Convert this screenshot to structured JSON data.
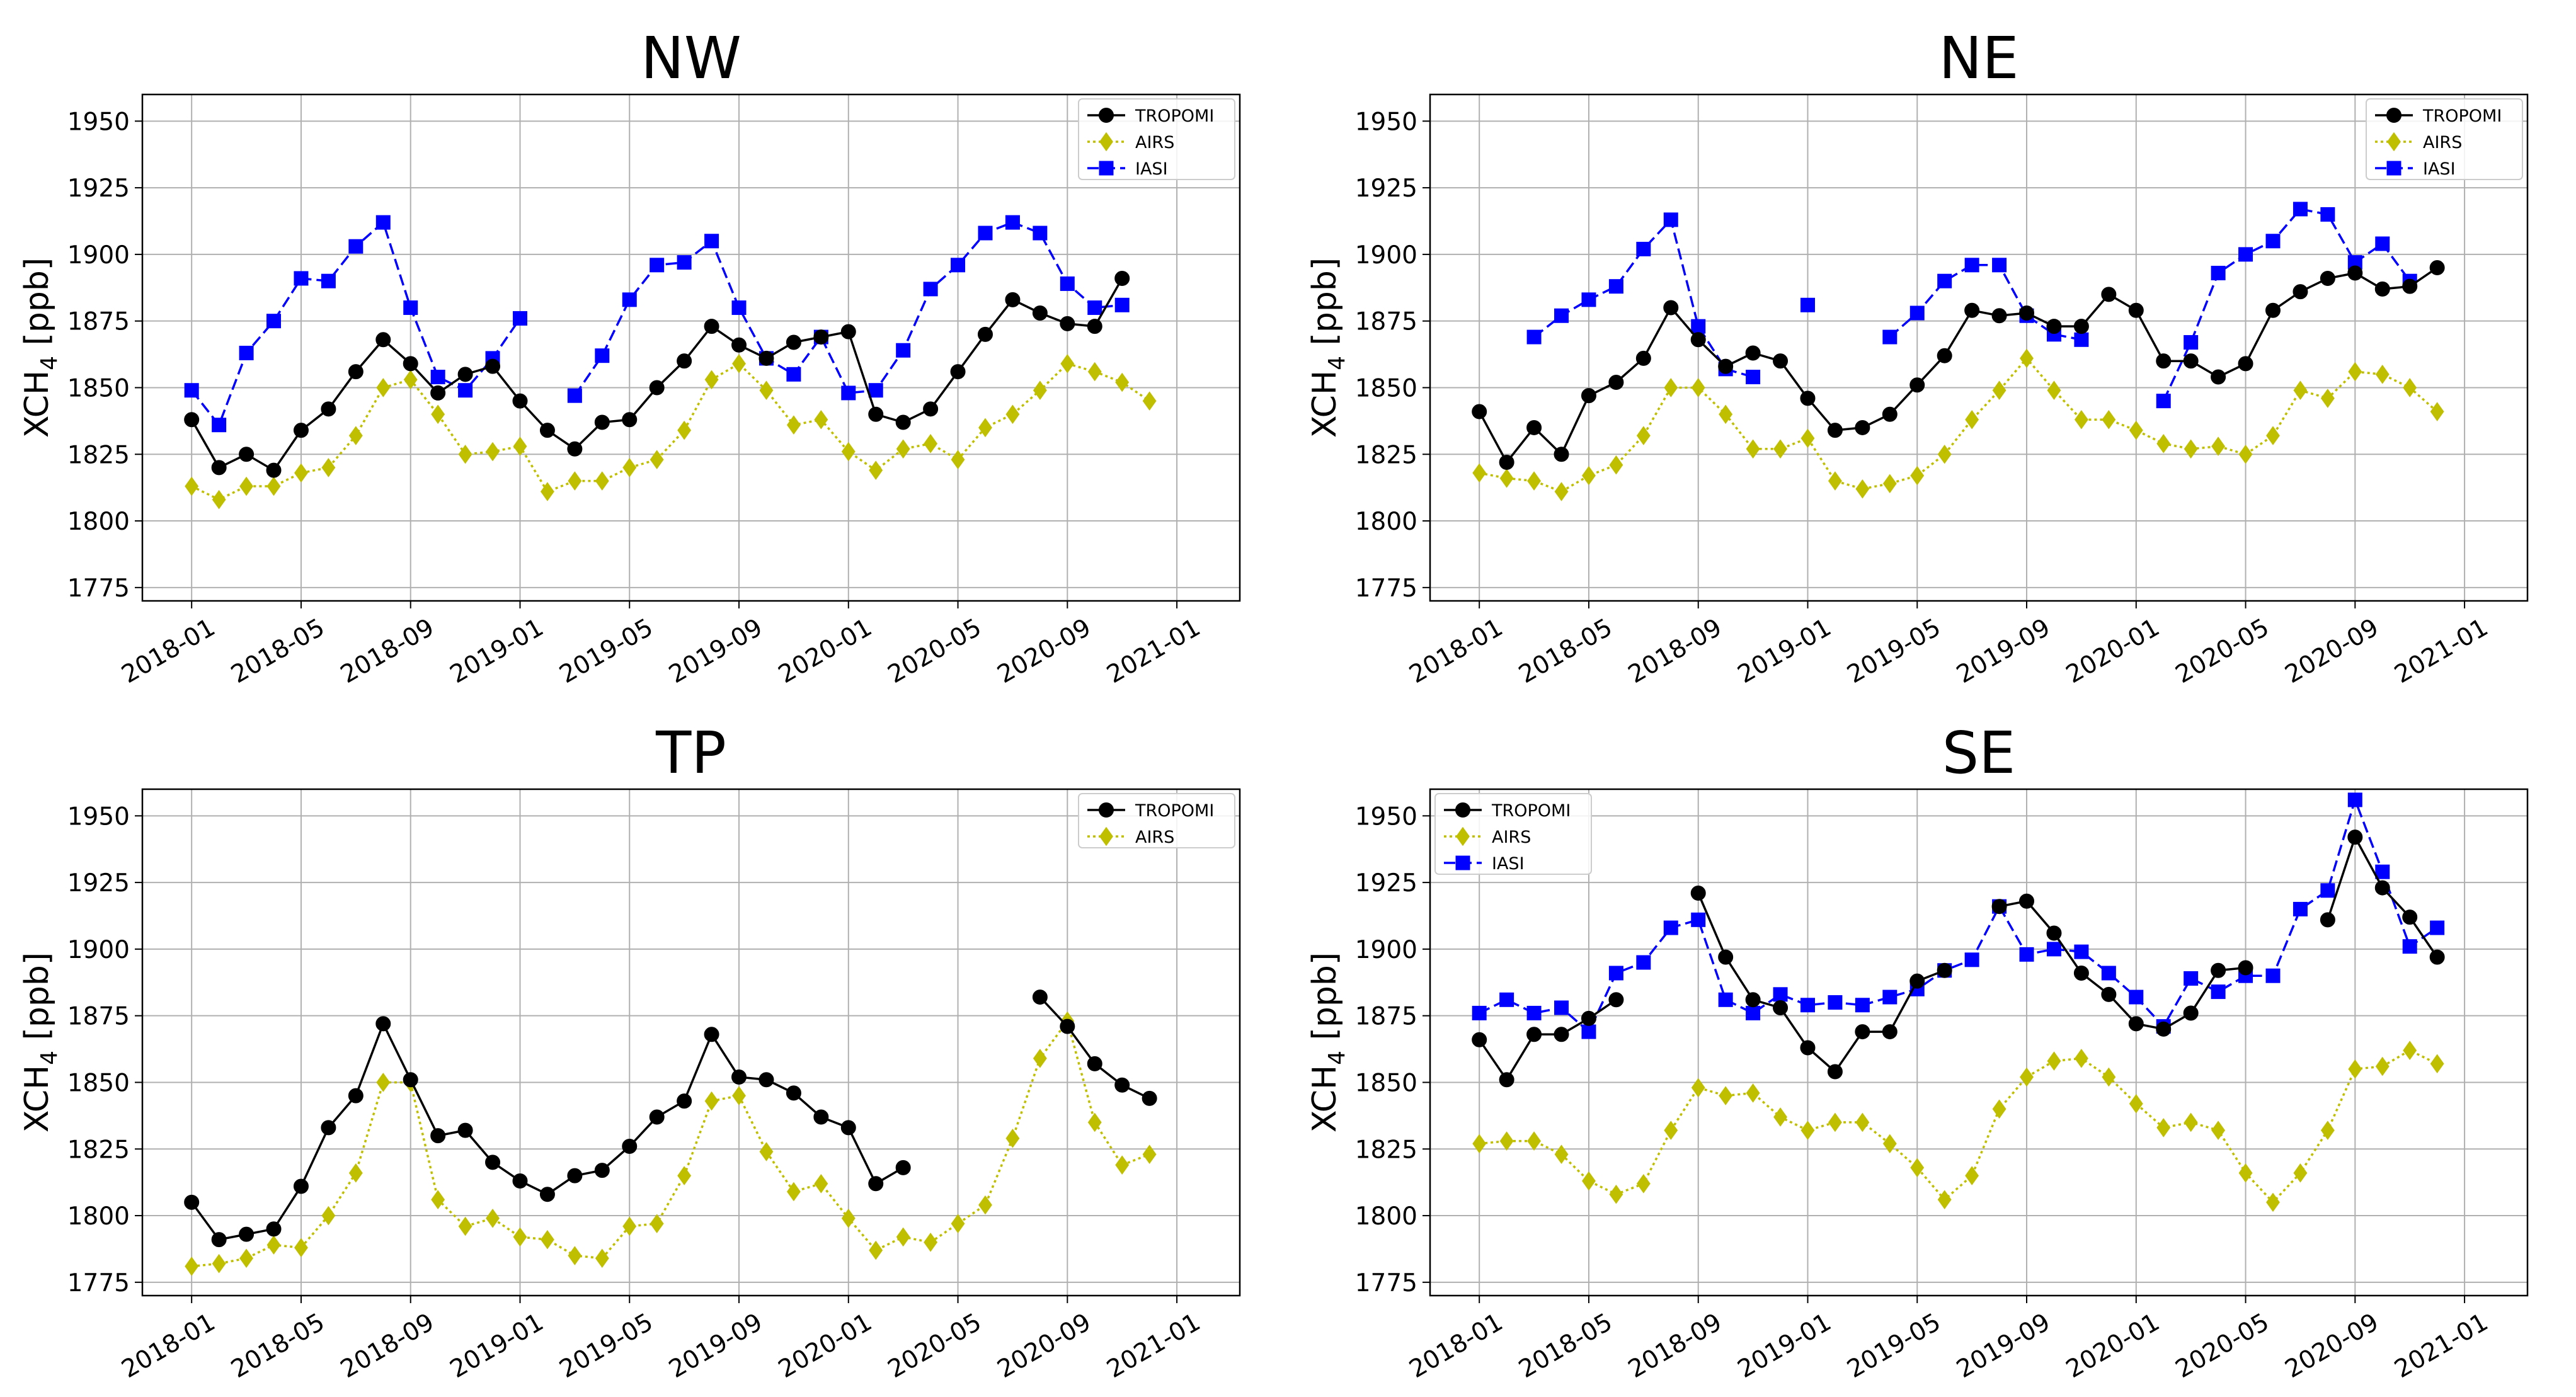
{
  "figure": {
    "series_styles": {
      "TROPOMI": {
        "color": "#000000",
        "marker": "circle",
        "dash": "solid"
      },
      "AIRS": {
        "color": "#bfbf00",
        "marker": "diamond",
        "dash": "dotted"
      },
      "IASI": {
        "color": "#0000ff",
        "marker": "square",
        "dash": "dashed"
      }
    }
  },
  "chart_data": [
    {
      "type": "line",
      "title": "NW",
      "xlabel": "",
      "ylabel": "XCH4 [ppb]",
      "ylabel_main": "XCH",
      "ylabel_sub": "4",
      "ylabel_unit": " [ppb]",
      "ylim": [
        1770,
        1960
      ],
      "yticks": [
        1775,
        1800,
        1825,
        1850,
        1875,
        1900,
        1925,
        1950
      ],
      "xlim": [
        -1.8,
        38.3
      ],
      "xtick_positions": [
        0,
        4,
        8,
        12,
        16,
        20,
        24,
        28,
        32,
        36
      ],
      "xtick_labels": [
        "2018-01",
        "2018-05",
        "2018-09",
        "2019-01",
        "2019-05",
        "2019-09",
        "2020-01",
        "2020-05",
        "2020-09",
        "2021-01"
      ],
      "grid": true,
      "legend_position": "top-right",
      "series": [
        {
          "name": "TROPOMI",
          "values": [
            1838,
            1820,
            1825,
            1819,
            1834,
            1842,
            1856,
            1868,
            1859,
            1848,
            1855,
            1858,
            1845,
            1834,
            1827,
            1837,
            1838,
            1850,
            1860,
            1873,
            1866,
            1861,
            1867,
            1869,
            1871,
            1840,
            1837,
            1842,
            1856,
            1870,
            1883,
            1878,
            1874,
            1873,
            1891
          ]
        },
        {
          "name": "AIRS",
          "values": [
            1813,
            1808,
            1813,
            1813,
            1818,
            1820,
            1832,
            1850,
            1853,
            1840,
            1825,
            1826,
            1828,
            1811,
            1815,
            1815,
            1820,
            1823,
            1834,
            1853,
            1859,
            1849,
            1836,
            1838,
            1826,
            1819,
            1827,
            1829,
            1823,
            1835,
            1840,
            1849,
            1859,
            1856,
            1852,
            1845
          ]
        },
        {
          "name": "IASI",
          "values": [
            1849,
            1836,
            1863,
            1875,
            1891,
            1890,
            1903,
            1912,
            1880,
            1854,
            1849,
            1861,
            1876,
            null,
            1847,
            1862,
            1883,
            1896,
            1897,
            1905,
            1880,
            1861,
            1855,
            1869,
            1848,
            1849,
            1864,
            1887,
            1896,
            1908,
            1912,
            1908,
            1889,
            1880,
            1881
          ]
        }
      ]
    },
    {
      "type": "line",
      "title": "NE",
      "xlabel": "",
      "ylabel": "XCH4 [ppb]",
      "ylabel_main": "XCH",
      "ylabel_sub": "4",
      "ylabel_unit": " [ppb]",
      "ylim": [
        1770,
        1960
      ],
      "yticks": [
        1775,
        1800,
        1825,
        1850,
        1875,
        1900,
        1925,
        1950
      ],
      "xlim": [
        -1.8,
        38.3
      ],
      "xtick_positions": [
        0,
        4,
        8,
        12,
        16,
        20,
        24,
        28,
        32,
        36
      ],
      "xtick_labels": [
        "2018-01",
        "2018-05",
        "2018-09",
        "2019-01",
        "2019-05",
        "2019-09",
        "2020-01",
        "2020-05",
        "2020-09",
        "2021-01"
      ],
      "grid": true,
      "legend_position": "top-right",
      "series": [
        {
          "name": "TROPOMI",
          "values": [
            1841,
            1822,
            1835,
            1825,
            1847,
            1852,
            1861,
            1880,
            1868,
            1858,
            1863,
            1860,
            1846,
            1834,
            1835,
            1840,
            1851,
            1862,
            1879,
            1877,
            1878,
            1873,
            1873,
            1885,
            1879,
            1860,
            1860,
            1854,
            1859,
            1879,
            1886,
            1891,
            1893,
            1887,
            1888,
            1895
          ]
        },
        {
          "name": "AIRS",
          "values": [
            1818,
            1816,
            1815,
            1811,
            1817,
            1821,
            1832,
            1850,
            1850,
            1840,
            1827,
            1827,
            1831,
            1815,
            1812,
            1814,
            1817,
            1825,
            1838,
            1849,
            1861,
            1849,
            1838,
            1838,
            1834,
            1829,
            1827,
            1828,
            1825,
            1832,
            1849,
            1846,
            1856,
            1855,
            1850,
            1841
          ]
        },
        {
          "name": "IASI",
          "values": [
            null,
            null,
            1869,
            1877,
            1883,
            1888,
            1902,
            1913,
            1873,
            1857,
            1854,
            null,
            1881,
            null,
            null,
            1869,
            1878,
            1890,
            1896,
            1896,
            1877,
            1870,
            1868,
            null,
            null,
            1845,
            1867,
            1893,
            1900,
            1905,
            1917,
            1915,
            1897,
            1904,
            1890
          ]
        }
      ]
    },
    {
      "type": "line",
      "title": "TP",
      "xlabel": "",
      "ylabel": "XCH4 [ppb]",
      "ylabel_main": "XCH",
      "ylabel_sub": "4",
      "ylabel_unit": " [ppb]",
      "ylim": [
        1770,
        1960
      ],
      "yticks": [
        1775,
        1800,
        1825,
        1850,
        1875,
        1900,
        1925,
        1950
      ],
      "xlim": [
        -1.8,
        38.3
      ],
      "xtick_positions": [
        0,
        4,
        8,
        12,
        16,
        20,
        24,
        28,
        32,
        36
      ],
      "xtick_labels": [
        "2018-01",
        "2018-05",
        "2018-09",
        "2019-01",
        "2019-05",
        "2019-09",
        "2020-01",
        "2020-05",
        "2020-09",
        "2021-01"
      ],
      "grid": true,
      "legend_position": "top-right",
      "series": [
        {
          "name": "TROPOMI",
          "values": [
            1805,
            1791,
            1793,
            1795,
            1811,
            1833,
            1845,
            1872,
            1851,
            1830,
            1832,
            1820,
            1813,
            1808,
            1815,
            1817,
            1826,
            1837,
            1843,
            1868,
            1852,
            1851,
            1846,
            1837,
            1833,
            1812,
            1818,
            null,
            null,
            null,
            null,
            1882,
            1871,
            1857,
            1849,
            1844
          ]
        },
        {
          "name": "AIRS",
          "values": [
            1781,
            1782,
            1784,
            1789,
            1788,
            1800,
            1816,
            1850,
            1850,
            1806,
            1796,
            1799,
            1792,
            1791,
            1785,
            1784,
            1796,
            1797,
            1815,
            1843,
            1845,
            1824,
            1809,
            1812,
            1799,
            1787,
            1792,
            1790,
            1797,
            1804,
            1829,
            1859,
            1873,
            1835,
            1819,
            1823
          ]
        }
      ]
    },
    {
      "type": "line",
      "title": "SE",
      "xlabel": "",
      "ylabel": "XCH4 [ppb]",
      "ylabel_main": "XCH",
      "ylabel_sub": "4",
      "ylabel_unit": " [ppb]",
      "ylim": [
        1770,
        1960
      ],
      "yticks": [
        1775,
        1800,
        1825,
        1850,
        1875,
        1900,
        1925,
        1950
      ],
      "xlim": [
        -1.8,
        38.3
      ],
      "xtick_positions": [
        0,
        4,
        8,
        12,
        16,
        20,
        24,
        28,
        32,
        36
      ],
      "xtick_labels": [
        "2018-01",
        "2018-05",
        "2018-09",
        "2019-01",
        "2019-05",
        "2019-09",
        "2020-01",
        "2020-05",
        "2020-09",
        "2021-01"
      ],
      "grid": true,
      "legend_position": "top-left",
      "series": [
        {
          "name": "TROPOMI",
          "values": [
            1866,
            1851,
            1868,
            1868,
            1874,
            1881,
            null,
            null,
            1921,
            1897,
            1881,
            1878,
            1863,
            1854,
            1869,
            1869,
            1888,
            1892,
            null,
            1916,
            1918,
            1906,
            1891,
            1883,
            1872,
            1870,
            1876,
            1892,
            1893,
            null,
            null,
            1911,
            1942,
            1923,
            1912,
            1897
          ]
        },
        {
          "name": "AIRS",
          "values": [
            1827,
            1828,
            1828,
            1823,
            1813,
            1808,
            1812,
            1832,
            1848,
            1845,
            1846,
            1837,
            1832,
            1835,
            1835,
            1827,
            1818,
            1806,
            1815,
            1840,
            1852,
            1858,
            1859,
            1852,
            1842,
            1833,
            1835,
            1832,
            1816,
            1805,
            1816,
            1832,
            1855,
            1856,
            1862,
            1857
          ]
        },
        {
          "name": "IASI",
          "values": [
            1876,
            1881,
            1876,
            1878,
            1869,
            1891,
            1895,
            1908,
            1911,
            1881,
            1876,
            1883,
            1879,
            1880,
            1879,
            1882,
            1885,
            1892,
            1896,
            1916,
            1898,
            1900,
            1899,
            1891,
            1882,
            1871,
            1889,
            1884,
            1890,
            1890,
            1915,
            1922,
            1956,
            1929,
            1901,
            1908
          ]
        }
      ]
    }
  ]
}
